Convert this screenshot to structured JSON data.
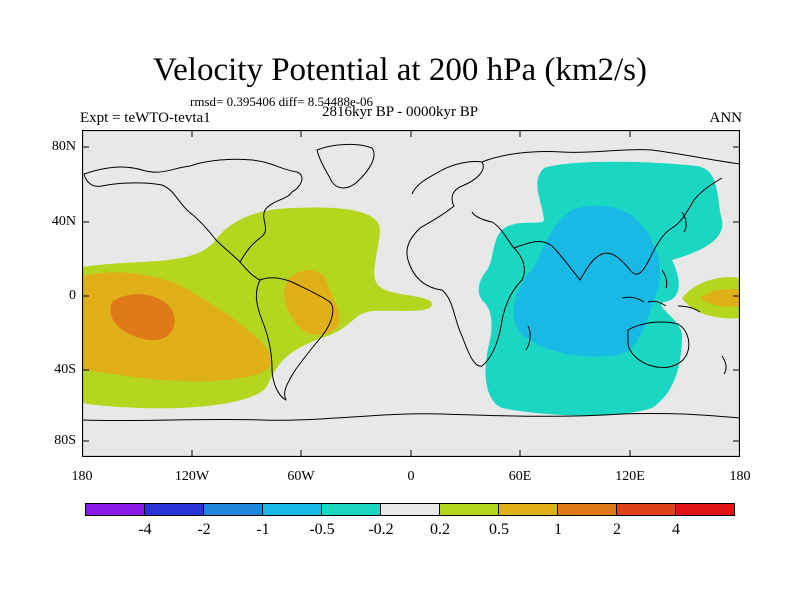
{
  "title": "Velocity Potential at 200 hPa (km2/s)",
  "stats": "rmsd= 0.395406 diff= 8.54488e-06",
  "expt": "Expt = teWTO-tevta1",
  "period": "2816kyr BP - 0000kyr BP",
  "season": "ANN",
  "map": {
    "lat_ticks": [
      "80N",
      "40N",
      "0",
      "40S",
      "80S"
    ],
    "lon_ticks": [
      "180",
      "120W",
      "60W",
      "0",
      "60E",
      "120E",
      "180"
    ]
  },
  "colorbar": {
    "labels": [
      "-4",
      "-2",
      "-1",
      "-0.5",
      "-0.2",
      "0.2",
      "0.5",
      "1",
      "2",
      "4"
    ],
    "colors": [
      "#8a19e6",
      "#2a33d6",
      "#1f86dc",
      "#19b9e6",
      "#1ad7c3",
      "#e8e8e8",
      "#b5d61f",
      "#e0b019",
      "#e07a19",
      "#e0421a",
      "#e01414"
    ]
  },
  "field_colors": {
    "background": "#e8e8e8",
    "pos1": "#b5d61f",
    "pos2": "#e0b019",
    "pos3": "#e07a19",
    "neg1": "#1ad7c3",
    "neg2": "#19b9e6"
  }
}
